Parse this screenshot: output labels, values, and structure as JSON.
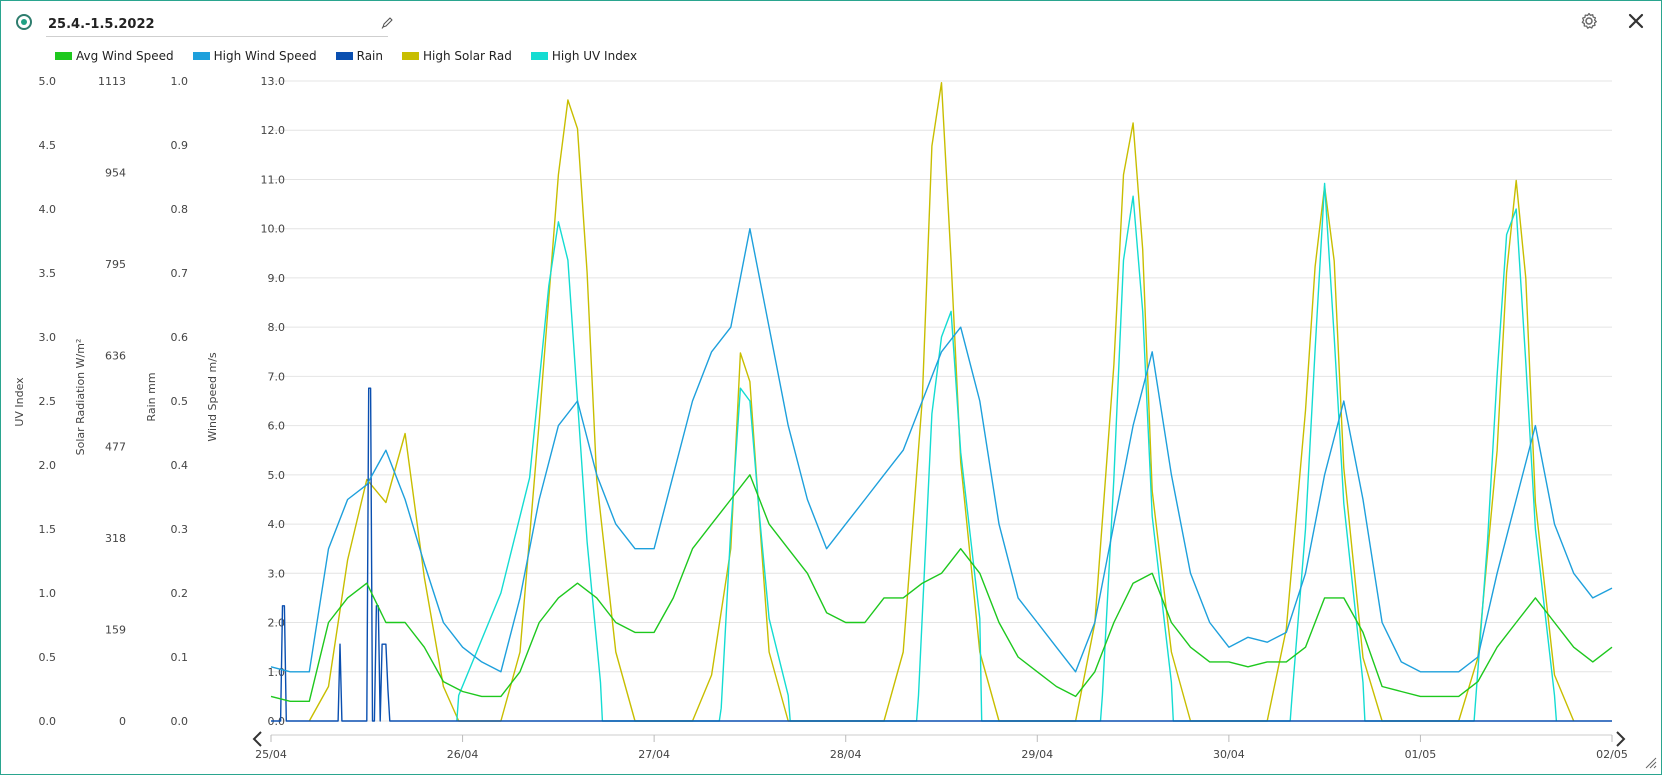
{
  "header": {
    "date_range": "25.4.-1.5.2022",
    "edit_icon": "pencil-icon",
    "settings_icon": "gear-icon",
    "close_icon": "close-icon"
  },
  "legend": [
    {
      "label": "Avg Wind Speed",
      "color": "#1ec81e"
    },
    {
      "label": "High Wind Speed",
      "color": "#1ea0dc"
    },
    {
      "label": "Rain",
      "color": "#0a4fb0"
    },
    {
      "label": "High Solar Rad",
      "color": "#c8be00"
    },
    {
      "label": "High UV Index",
      "color": "#14dcd2"
    }
  ],
  "chart_data": {
    "type": "line",
    "x_ticks": [
      "25/04",
      "26/04",
      "27/04",
      "28/04",
      "29/04",
      "30/04",
      "01/05",
      "02/05"
    ],
    "axes": [
      {
        "id": "uv",
        "label": "UV Index",
        "ticks": [
          "0.0",
          "0.5",
          "1.0",
          "1.5",
          "2.0",
          "2.5",
          "3.0",
          "3.5",
          "4.0",
          "4.5",
          "5.0"
        ],
        "range": [
          0,
          5
        ]
      },
      {
        "id": "solar",
        "label": "Solar Radiation W/m²",
        "ticks": [
          "0",
          "159",
          "318",
          "477",
          "636",
          "795",
          "954",
          "1113"
        ],
        "range": [
          0,
          1113
        ]
      },
      {
        "id": "rain",
        "label": "Rain mm",
        "ticks": [
          "0.0",
          "0.1",
          "0.2",
          "0.3",
          "0.4",
          "0.5",
          "0.6",
          "0.7",
          "0.8",
          "0.9",
          "1.0"
        ],
        "range": [
          0,
          1
        ]
      },
      {
        "id": "wind",
        "label": "Wind Speed m/s",
        "ticks": [
          "0.0",
          "1.0",
          "2.0",
          "3.0",
          "4.0",
          "5.0",
          "6.0",
          "7.0",
          "8.0",
          "9.0",
          "10.0",
          "11.0",
          "12.0",
          "13.0"
        ],
        "range": [
          0,
          13
        ]
      }
    ],
    "series": [
      {
        "name": "High Solar Rad",
        "axis": "solar",
        "color": "#c8be00",
        "x": [
          0.2,
          0.3,
          0.4,
          0.5,
          0.6,
          0.7,
          0.8,
          0.9,
          0.98,
          1.2,
          1.3,
          1.4,
          1.5,
          1.55,
          1.6,
          1.65,
          1.7,
          1.8,
          1.9,
          1.98,
          2.2,
          2.3,
          2.4,
          2.45,
          2.5,
          2.55,
          2.6,
          2.7,
          2.8,
          2.98,
          3.2,
          3.3,
          3.4,
          3.45,
          3.5,
          3.55,
          3.6,
          3.7,
          3.8,
          3.98,
          4.2,
          4.3,
          4.4,
          4.45,
          4.5,
          4.55,
          4.6,
          4.7,
          4.8,
          4.98,
          5.2,
          5.3,
          5.4,
          5.45,
          5.5,
          5.55,
          5.6,
          5.7,
          5.8,
          5.98,
          6.2,
          6.3,
          6.4,
          6.45,
          6.5,
          6.55,
          6.6,
          6.7,
          6.8
        ],
        "y": [
          0,
          60,
          280,
          420,
          380,
          500,
          250,
          60,
          0,
          0,
          120,
          520,
          950,
          1080,
          1030,
          780,
          420,
          120,
          0,
          0,
          0,
          80,
          300,
          640,
          590,
          350,
          120,
          0,
          0,
          0,
          0,
          120,
          560,
          1000,
          1110,
          800,
          450,
          120,
          0,
          0,
          0,
          170,
          620,
          950,
          1040,
          820,
          400,
          120,
          0,
          0,
          0,
          160,
          540,
          790,
          930,
          800,
          440,
          110,
          0,
          0,
          0,
          110,
          470,
          780,
          940,
          770,
          380,
          80,
          0
        ]
      },
      {
        "name": "High UV Index",
        "axis": "uv",
        "color": "#14dcd2",
        "x": [
          0.97,
          0.98,
          1.2,
          1.35,
          1.45,
          1.5,
          1.55,
          1.6,
          1.65,
          1.72,
          1.73,
          2.34,
          2.35,
          2.4,
          2.45,
          2.5,
          2.55,
          2.6,
          2.7,
          2.71,
          3.37,
          3.38,
          3.45,
          3.5,
          3.55,
          3.6,
          3.7,
          3.71,
          4.33,
          4.34,
          4.4,
          4.45,
          4.5,
          4.55,
          4.6,
          4.7,
          4.71,
          5.32,
          5.33,
          5.4,
          5.45,
          5.5,
          5.55,
          5.6,
          5.7,
          5.71,
          6.28,
          6.29,
          6.35,
          6.4,
          6.45,
          6.5,
          6.55,
          6.6,
          6.7,
          6.71
        ],
        "y": [
          0,
          0.2,
          1.0,
          1.9,
          3.4,
          3.9,
          3.6,
          2.5,
          1.4,
          0.3,
          0,
          0,
          0.1,
          1.5,
          2.6,
          2.5,
          1.6,
          0.8,
          0.2,
          0,
          0,
          0.2,
          2.4,
          3.0,
          3.2,
          2.1,
          0.8,
          0,
          0,
          0.2,
          1.9,
          3.6,
          4.1,
          3.2,
          1.6,
          0.3,
          0,
          0,
          0.2,
          1.5,
          2.9,
          4.2,
          3.0,
          1.7,
          0.3,
          0,
          0,
          0.2,
          1.4,
          2.7,
          3.8,
          4.0,
          2.8,
          1.5,
          0.2,
          0
        ]
      },
      {
        "name": "Rain",
        "axis": "rain",
        "color": "#0a4fb0",
        "x": [
          0.0,
          0.05,
          0.06,
          0.07,
          0.08,
          0.35,
          0.36,
          0.37,
          0.5,
          0.51,
          0.52,
          0.53,
          0.54,
          0.55,
          0.56,
          0.57,
          0.58,
          0.6,
          0.61,
          0.62,
          0.63,
          7.0
        ],
        "y": [
          0,
          0,
          0.18,
          0.18,
          0,
          0,
          0.12,
          0,
          0,
          0.52,
          0.52,
          0,
          0,
          0.18,
          0.18,
          0,
          0.12,
          0.12,
          0.05,
          0,
          0,
          0
        ]
      },
      {
        "name": "High Wind Speed",
        "axis": "wind",
        "color": "#1ea0dc",
        "x": [
          0.0,
          0.1,
          0.2,
          0.3,
          0.4,
          0.5,
          0.6,
          0.7,
          0.8,
          0.9,
          1.0,
          1.1,
          1.2,
          1.3,
          1.4,
          1.5,
          1.6,
          1.7,
          1.8,
          1.9,
          2.0,
          2.1,
          2.2,
          2.3,
          2.4,
          2.5,
          2.6,
          2.7,
          2.8,
          2.9,
          3.0,
          3.1,
          3.2,
          3.3,
          3.4,
          3.5,
          3.6,
          3.7,
          3.8,
          3.9,
          4.0,
          4.1,
          4.2,
          4.3,
          4.4,
          4.5,
          4.6,
          4.7,
          4.8,
          4.9,
          5.0,
          5.1,
          5.2,
          5.3,
          5.4,
          5.5,
          5.6,
          5.7,
          5.8,
          5.9,
          6.0,
          6.1,
          6.2,
          6.3,
          6.4,
          6.5,
          6.6,
          6.7,
          6.8,
          6.9,
          7.0
        ],
        "y": [
          1.1,
          1.0,
          1.0,
          3.5,
          4.5,
          4.8,
          5.5,
          4.5,
          3.2,
          2.0,
          1.5,
          1.2,
          1.0,
          2.5,
          4.5,
          6.0,
          6.5,
          5.0,
          4.0,
          3.5,
          3.5,
          5.0,
          6.5,
          7.5,
          8.0,
          10.0,
          8.0,
          6.0,
          4.5,
          3.5,
          4.0,
          4.5,
          5.0,
          5.5,
          6.5,
          7.5,
          8.0,
          6.5,
          4.0,
          2.5,
          2.0,
          1.5,
          1.0,
          2.0,
          4.0,
          6.0,
          7.5,
          5.0,
          3.0,
          2.0,
          1.5,
          1.7,
          1.6,
          1.8,
          3.0,
          5.0,
          6.5,
          4.5,
          2.0,
          1.2,
          1.0,
          1.0,
          1.0,
          1.3,
          3.0,
          4.5,
          6.0,
          4.0,
          3.0,
          2.5,
          2.7
        ]
      },
      {
        "name": "Avg Wind Speed",
        "axis": "wind",
        "color": "#1ec81e",
        "x": [
          0.0,
          0.1,
          0.2,
          0.3,
          0.4,
          0.5,
          0.6,
          0.7,
          0.8,
          0.9,
          1.0,
          1.1,
          1.2,
          1.3,
          1.4,
          1.5,
          1.6,
          1.7,
          1.8,
          1.9,
          2.0,
          2.1,
          2.2,
          2.3,
          2.4,
          2.5,
          2.6,
          2.7,
          2.8,
          2.9,
          3.0,
          3.1,
          3.2,
          3.3,
          3.4,
          3.5,
          3.6,
          3.7,
          3.8,
          3.9,
          4.0,
          4.1,
          4.2,
          4.3,
          4.4,
          4.5,
          4.6,
          4.7,
          4.8,
          4.9,
          5.0,
          5.1,
          5.2,
          5.3,
          5.4,
          5.5,
          5.6,
          5.7,
          5.8,
          5.9,
          6.0,
          6.1,
          6.2,
          6.3,
          6.4,
          6.5,
          6.6,
          6.7,
          6.8,
          6.9,
          7.0
        ],
        "y": [
          0.5,
          0.4,
          0.4,
          2.0,
          2.5,
          2.8,
          2.0,
          2.0,
          1.5,
          0.8,
          0.6,
          0.5,
          0.5,
          1.0,
          2.0,
          2.5,
          2.8,
          2.5,
          2.0,
          1.8,
          1.8,
          2.5,
          3.5,
          4.0,
          4.5,
          5.0,
          4.0,
          3.5,
          3.0,
          2.2,
          2.0,
          2.0,
          2.5,
          2.5,
          2.8,
          3.0,
          3.5,
          3.0,
          2.0,
          1.3,
          1.0,
          0.7,
          0.5,
          1.0,
          2.0,
          2.8,
          3.0,
          2.0,
          1.5,
          1.2,
          1.2,
          1.1,
          1.2,
          1.2,
          1.5,
          2.5,
          2.5,
          1.8,
          0.7,
          0.6,
          0.5,
          0.5,
          0.5,
          0.8,
          1.5,
          2.0,
          2.5,
          2.0,
          1.5,
          1.2,
          1.5
        ]
      }
    ]
  }
}
